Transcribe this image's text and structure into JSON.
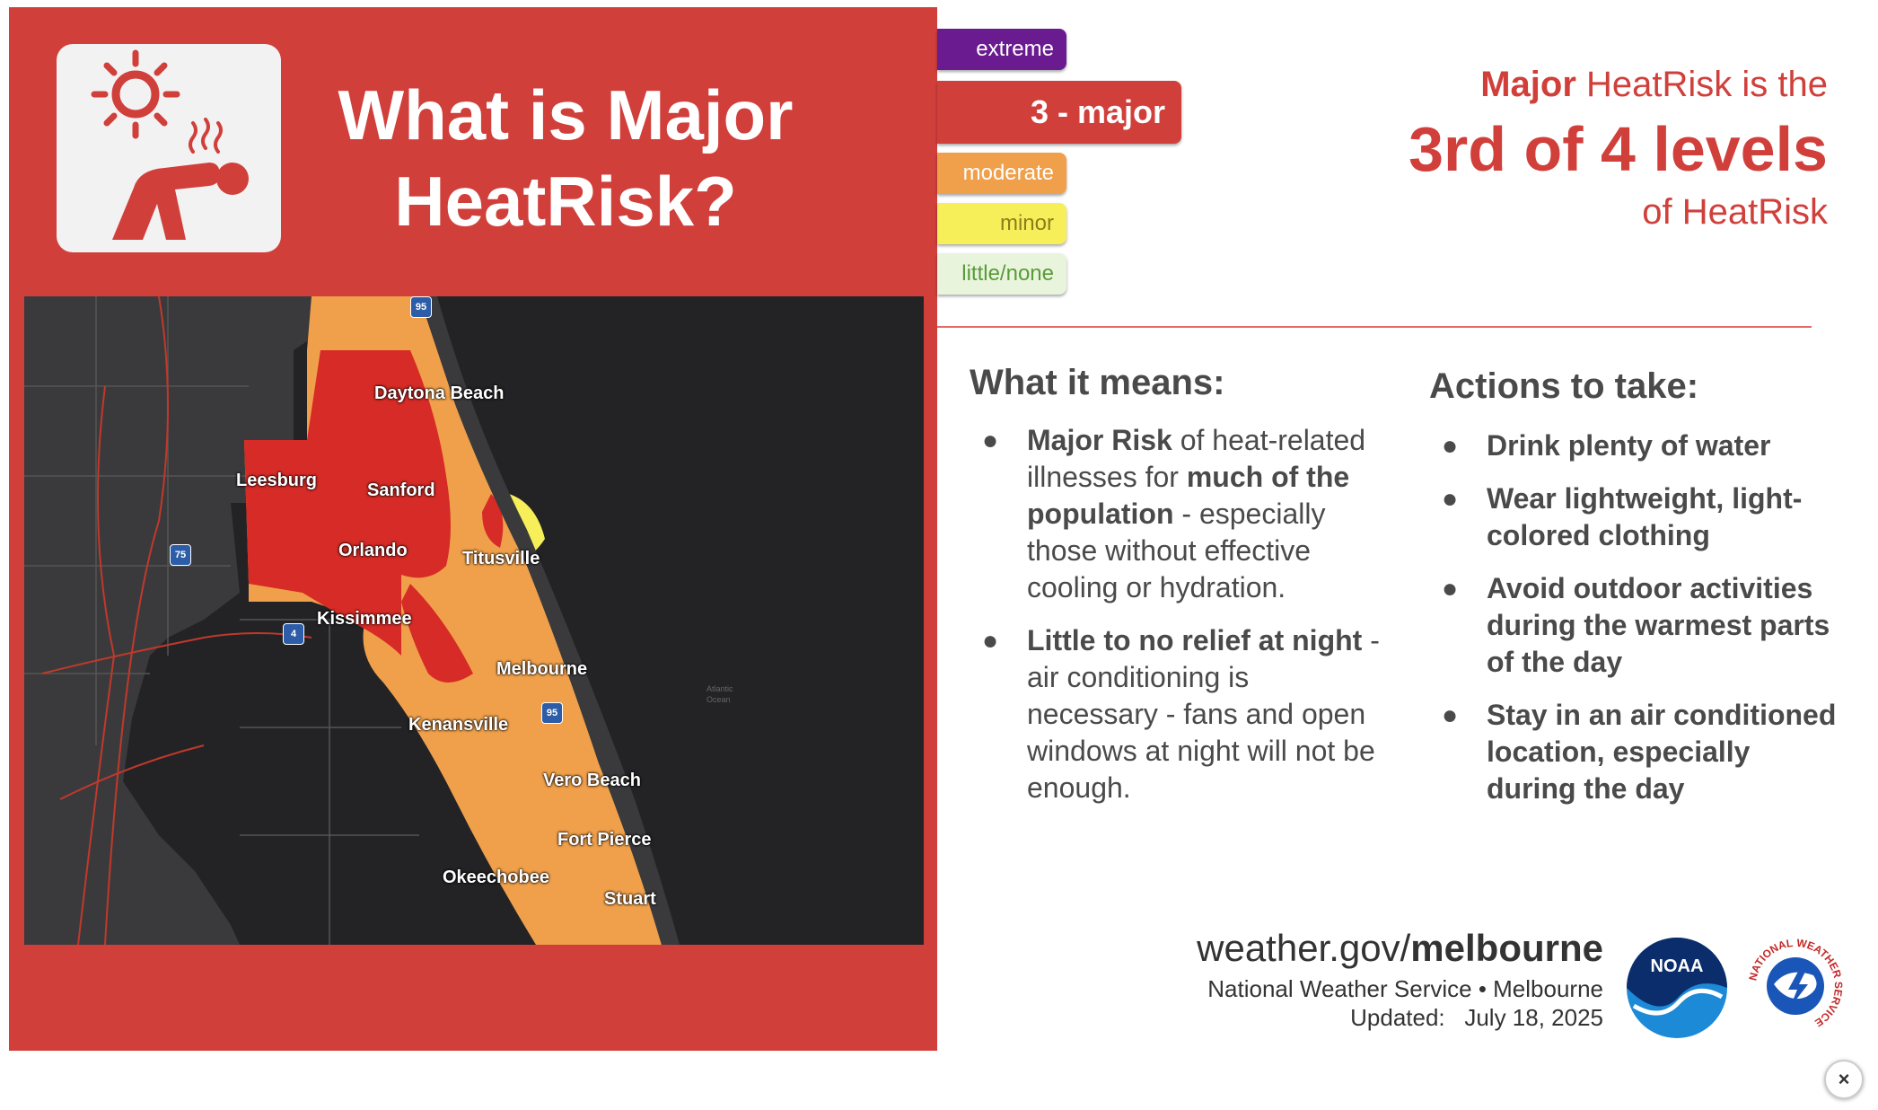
{
  "title": {
    "line1": "What is Major",
    "line2": "HeatRisk?"
  },
  "levels": [
    {
      "label": "extreme",
      "color": "#6a1b8f"
    },
    {
      "label": "3 - major",
      "color": "#d13f3b"
    },
    {
      "label": "moderate",
      "color": "#f0a04b"
    },
    {
      "label": "minor",
      "color": "#f7ef5a"
    },
    {
      "label": "little/none",
      "color": "#e8f5dc"
    }
  ],
  "heading": {
    "prefix_bold": "Major",
    "prefix_rest": " HeatRisk is the",
    "big": "3rd of 4 levels",
    "suffix": "of HeatRisk"
  },
  "map": {
    "cities": [
      "Daytona Beach",
      "Leesburg",
      "Sanford",
      "Orlando",
      "Titusville",
      "Kissimmee",
      "Melbourne",
      "Kenansville",
      "Vero Beach",
      "Fort Pierce",
      "Okeechobee",
      "Stuart"
    ],
    "shields": [
      "95",
      "75",
      "4",
      "95"
    ],
    "ocean_label": "Atlantic Ocean"
  },
  "means": {
    "title": "What it means:",
    "b1": {
      "bold1": "Major Risk",
      "t1": " of heat-related illnesses for ",
      "bold2": "much of the population",
      "t2": " - especially those without effective cooling or hydration."
    },
    "b2": {
      "bold": "Little to no relief at night",
      "t": " - air conditioning is necessary - fans and open windows at night will not be enough."
    }
  },
  "actions": {
    "title": "Actions to take:",
    "items": [
      "Drink plenty of water",
      "Wear lightweight, light-colored clothing",
      "Avoid outdoor activities during the warmest parts of the day",
      "Stay in an air conditioned location, especially during the day"
    ]
  },
  "footer": {
    "site_prefix": "weather.gov/",
    "site_bold": "melbourne",
    "org": "National Weather Service • Melbourne",
    "updated_label": "Updated:",
    "updated_date": "July 18, 2025"
  },
  "logos": {
    "noaa": "NOAA",
    "nws_ring": "NATIONAL WEATHER SERVICE"
  },
  "close_label": "×"
}
